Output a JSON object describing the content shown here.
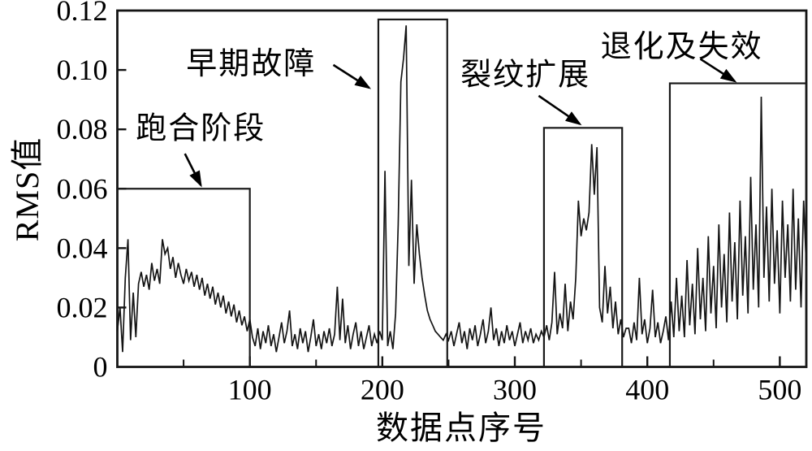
{
  "page": {
    "background": "#ffffff"
  },
  "chart_data": {
    "type": "line",
    "title": "",
    "xlabel": "数据点序号",
    "ylabel": "RMS值",
    "xlim": [
      0,
      520
    ],
    "ylim": [
      0,
      0.12
    ],
    "grid": false,
    "legend": "none",
    "line_color": "#141414",
    "box_color": "#1a1a1a",
    "text_color": "#000000",
    "x_major_ticks": [
      100,
      200,
      300,
      400,
      500
    ],
    "x_major_tick_labels": [
      "100",
      "200",
      "300",
      "400",
      "500"
    ],
    "x_minor_ticks": [
      50,
      150,
      250,
      350,
      450
    ],
    "y_ticks": [
      0,
      0.02,
      0.04,
      0.06,
      0.08,
      0.1,
      0.12
    ],
    "y_tick_labels": [
      "0",
      "0.02",
      "0.04",
      "0.06",
      "0.08",
      "0.10",
      "0.12"
    ],
    "stage_boxes": [
      {
        "label": "跑合阶段",
        "x0": 0,
        "x1": 100,
        "y0": 0,
        "y1": 0.06
      },
      {
        "label": "早期故障",
        "x0": 197,
        "x1": 249,
        "y0": 0,
        "y1": 0.117
      },
      {
        "label": "裂纹扩展",
        "x0": 322,
        "x1": 381,
        "y0": 0,
        "y1": 0.0805
      },
      {
        "label": "退化及失效",
        "x0": 417,
        "x1": 520,
        "y0": 0,
        "y1": 0.0955
      }
    ],
    "annotations": [
      {
        "text": "跑合阶段",
        "label_x": 63,
        "label_y": 0.0805,
        "arrow": [
          [
            51,
            0.0718
          ],
          [
            63,
            0.0612
          ]
        ]
      },
      {
        "text": "早期故障",
        "label_x": 101,
        "label_y": 0.1022,
        "arrow": [
          [
            163,
            0.1017
          ],
          [
            190,
            0.094
          ]
        ]
      },
      {
        "text": "裂纹扩展",
        "label_x": 308,
        "label_y": 0.0985,
        "arrow": [
          [
            318,
            0.0913
          ],
          [
            349,
            0.0818
          ]
        ]
      },
      {
        "text": "退化及失效",
        "label_x": 426,
        "label_y": 0.108,
        "arrow": [
          [
            440,
            0.1037
          ],
          [
            466,
            0.0962
          ]
        ]
      }
    ],
    "series": [
      {
        "name": "RMS",
        "x_start": 0,
        "x_step": 2,
        "values": [
          0.012,
          0.02,
          0.005,
          0.03,
          0.043,
          0.009,
          0.025,
          0.01,
          0.028,
          0.032,
          0.027,
          0.031,
          0.026,
          0.035,
          0.029,
          0.033,
          0.028,
          0.043,
          0.038,
          0.04,
          0.033,
          0.037,
          0.03,
          0.035,
          0.031,
          0.028,
          0.033,
          0.029,
          0.032,
          0.027,
          0.031,
          0.026,
          0.03,
          0.024,
          0.028,
          0.023,
          0.027,
          0.021,
          0.025,
          0.02,
          0.024,
          0.018,
          0.022,
          0.017,
          0.021,
          0.015,
          0.019,
          0.014,
          0.017,
          0.012,
          0.016,
          0.01,
          0.007,
          0.013,
          0.006,
          0.012,
          0.008,
          0.014,
          0.007,
          0.011,
          0.005,
          0.01,
          0.015,
          0.008,
          0.012,
          0.019,
          0.007,
          0.011,
          0.006,
          0.013,
          0.008,
          0.012,
          0.005,
          0.01,
          0.016,
          0.007,
          0.011,
          0.006,
          0.012,
          0.008,
          0.013,
          0.007,
          0.011,
          0.027,
          0.009,
          0.023,
          0.008,
          0.014,
          0.006,
          0.011,
          0.015,
          0.007,
          0.012,
          0.006,
          0.01,
          0.014,
          0.007,
          0.011,
          0.008,
          0.012,
          0.009,
          0.066,
          0.007,
          0.012,
          0.006,
          0.018,
          0.048,
          0.096,
          0.104,
          0.115,
          0.034,
          0.063,
          0.028,
          0.048,
          0.038,
          0.03,
          0.024,
          0.019,
          0.016,
          0.014,
          0.012,
          0.011,
          0.01,
          0.009,
          0.011,
          0.009,
          0.012,
          0.007,
          0.011,
          0.015,
          0.008,
          0.012,
          0.006,
          0.013,
          0.009,
          0.014,
          0.007,
          0.011,
          0.016,
          0.008,
          0.012,
          0.02,
          0.009,
          0.013,
          0.007,
          0.012,
          0.008,
          0.014,
          0.009,
          0.012,
          0.007,
          0.011,
          0.015,
          0.008,
          0.012,
          0.009,
          0.013,
          0.008,
          0.011,
          0.009,
          0.012,
          0.01,
          0.014,
          0.009,
          0.015,
          0.032,
          0.011,
          0.018,
          0.013,
          0.028,
          0.012,
          0.022,
          0.016,
          0.03,
          0.056,
          0.044,
          0.05,
          0.046,
          0.052,
          0.075,
          0.058,
          0.074,
          0.02,
          0.015,
          0.034,
          0.018,
          0.027,
          0.013,
          0.022,
          0.011,
          0.016,
          0.01,
          0.013,
          0.013,
          0.008,
          0.015,
          0.009,
          0.03,
          0.011,
          0.016,
          0.008,
          0.013,
          0.026,
          0.01,
          0.015,
          0.008,
          0.012,
          0.017,
          0.009,
          0.022,
          0.01,
          0.03,
          0.012,
          0.024,
          0.01,
          0.036,
          0.014,
          0.028,
          0.011,
          0.04,
          0.016,
          0.03,
          0.012,
          0.044,
          0.018,
          0.034,
          0.013,
          0.048,
          0.02,
          0.038,
          0.015,
          0.052,
          0.022,
          0.042,
          0.016,
          0.056,
          0.024,
          0.044,
          0.018,
          0.064,
          0.026,
          0.048,
          0.02,
          0.091,
          0.03,
          0.054,
          0.022,
          0.06,
          0.028,
          0.046,
          0.018,
          0.056,
          0.03,
          0.048,
          0.022,
          0.06,
          0.026,
          0.05,
          0.02,
          0.056,
          0.034
        ]
      }
    ]
  }
}
